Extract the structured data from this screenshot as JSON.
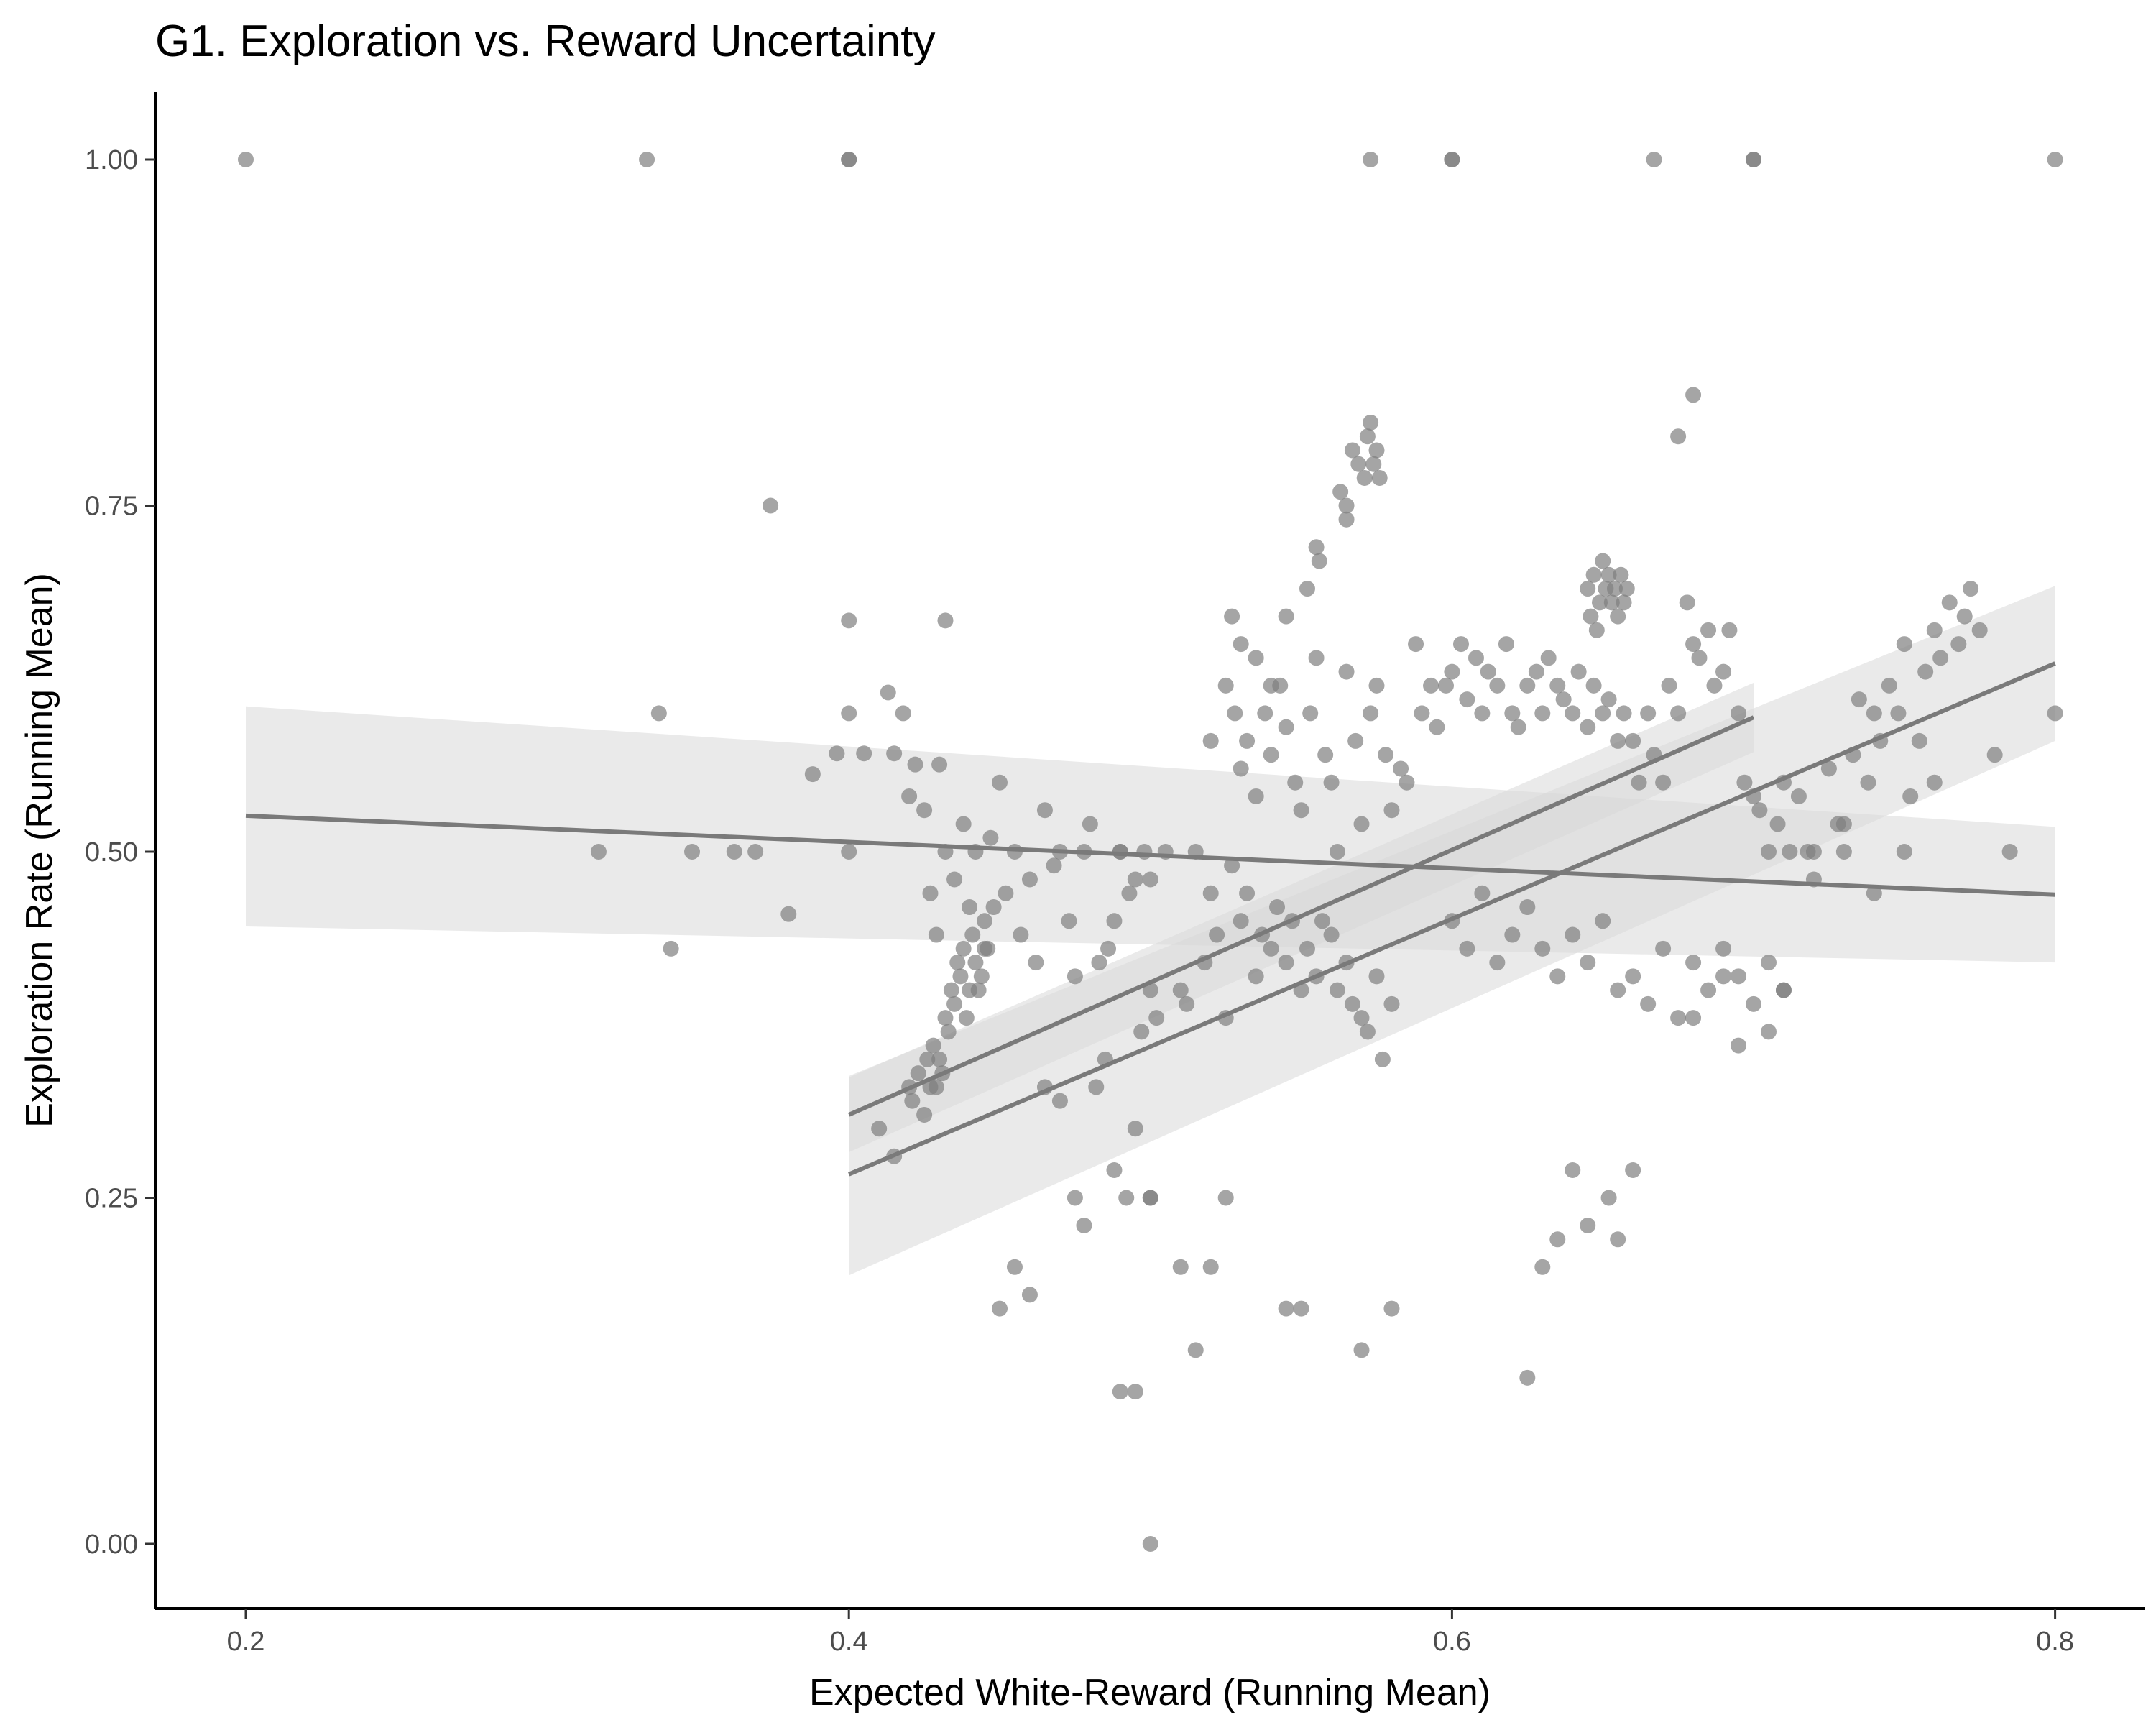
{
  "chart_data": {
    "type": "scatter",
    "title": "G1. Exploration vs. Reward Uncertainty",
    "xlabel": "Expected White-Reward (Running Mean)",
    "ylabel": "Exploration Rate (Running Mean)",
    "xlim": [
      0.17,
      0.81
    ],
    "ylim": [
      -0.05,
      1.05
    ],
    "x_ticks": [
      0.2,
      0.4,
      0.6,
      0.8
    ],
    "x_tick_labels": [
      "0.2",
      "0.4",
      "0.6",
      "0.8"
    ],
    "y_ticks": [
      0.0,
      0.25,
      0.5,
      0.75,
      1.0
    ],
    "y_tick_labels": [
      "0.00",
      "0.25",
      "0.50",
      "0.75",
      "1.00"
    ],
    "grid": false,
    "legend": "none",
    "colors": {
      "points": "#7f7f7f",
      "lines": "#7a7a7a",
      "ribbon": "#d9d9d9"
    },
    "series": [
      {
        "kind": "points",
        "x": [
          0.2,
          0.333,
          0.4,
          0.4,
          0.573,
          0.6,
          0.6,
          0.667,
          0.7,
          0.7,
          0.8,
          0.317,
          0.348,
          0.362,
          0.369,
          0.341,
          0.337,
          0.374,
          0.38,
          0.388,
          0.396,
          0.4,
          0.4,
          0.4,
          0.405,
          0.413,
          0.415,
          0.418,
          0.42,
          0.422,
          0.425,
          0.43,
          0.432,
          0.42,
          0.421,
          0.423,
          0.425,
          0.426,
          0.427,
          0.428,
          0.429,
          0.43,
          0.431,
          0.432,
          0.433,
          0.434,
          0.435,
          0.436,
          0.437,
          0.438,
          0.439,
          0.44,
          0.441,
          0.442,
          0.443,
          0.444,
          0.445,
          0.446,
          0.448,
          0.427,
          0.429,
          0.432,
          0.435,
          0.438,
          0.44,
          0.442,
          0.445,
          0.447,
          0.45,
          0.452,
          0.455,
          0.457,
          0.46,
          0.462,
          0.465,
          0.468,
          0.47,
          0.473,
          0.475,
          0.478,
          0.48,
          0.483,
          0.486,
          0.488,
          0.49,
          0.493,
          0.495,
          0.498,
          0.5,
          0.41,
          0.415,
          0.45,
          0.455,
          0.46,
          0.465,
          0.47,
          0.475,
          0.478,
          0.482,
          0.485,
          0.488,
          0.49,
          0.492,
          0.495,
          0.497,
          0.5,
          0.5,
          0.502,
          0.505,
          0.51,
          0.512,
          0.515,
          0.518,
          0.52,
          0.522,
          0.525,
          0.527,
          0.53,
          0.532,
          0.535,
          0.537,
          0.54,
          0.542,
          0.545,
          0.547,
          0.55,
          0.552,
          0.555,
          0.557,
          0.56,
          0.562,
          0.565,
          0.567,
          0.57,
          0.572,
          0.575,
          0.577,
          0.58,
          0.52,
          0.525,
          0.528,
          0.53,
          0.532,
          0.535,
          0.538,
          0.54,
          0.543,
          0.545,
          0.548,
          0.55,
          0.553,
          0.555,
          0.558,
          0.56,
          0.562,
          0.565,
          0.568,
          0.57,
          0.573,
          0.575,
          0.578,
          0.58,
          0.583,
          0.585,
          0.588,
          0.59,
          0.593,
          0.595,
          0.567,
          0.569,
          0.571,
          0.572,
          0.573,
          0.574,
          0.575,
          0.576,
          0.563,
          0.565,
          0.555,
          0.556,
          0.552,
          0.545,
          0.54,
          0.535,
          0.53,
          0.527,
          0.565,
          0.598,
          0.6,
          0.603,
          0.605,
          0.608,
          0.61,
          0.612,
          0.615,
          0.618,
          0.62,
          0.622,
          0.625,
          0.628,
          0.63,
          0.632,
          0.635,
          0.637,
          0.64,
          0.642,
          0.645,
          0.647,
          0.65,
          0.652,
          0.655,
          0.657,
          0.66,
          0.662,
          0.665,
          0.667,
          0.67,
          0.6,
          0.605,
          0.61,
          0.615,
          0.62,
          0.625,
          0.63,
          0.635,
          0.64,
          0.645,
          0.65,
          0.655,
          0.66,
          0.665,
          0.67,
          0.675,
          0.68,
          0.685,
          0.69,
          0.695,
          0.7,
          0.705,
          0.71,
          0.645,
          0.647,
          0.649,
          0.65,
          0.651,
          0.652,
          0.653,
          0.654,
          0.655,
          0.656,
          0.657,
          0.658,
          0.648,
          0.646,
          0.672,
          0.675,
          0.678,
          0.68,
          0.682,
          0.685,
          0.687,
          0.69,
          0.692,
          0.695,
          0.697,
          0.7,
          0.702,
          0.705,
          0.708,
          0.71,
          0.712,
          0.715,
          0.718,
          0.72,
          0.725,
          0.728,
          0.73,
          0.733,
          0.735,
          0.738,
          0.74,
          0.742,
          0.745,
          0.748,
          0.75,
          0.752,
          0.755,
          0.757,
          0.76,
          0.762,
          0.765,
          0.768,
          0.77,
          0.772,
          0.775,
          0.78,
          0.785,
          0.8,
          0.68,
          0.69,
          0.695,
          0.705,
          0.71,
          0.72,
          0.73,
          0.74,
          0.75,
          0.76,
          0.5,
          0.5,
          0.49,
          0.495,
          0.51,
          0.515,
          0.52,
          0.525,
          0.545,
          0.55,
          0.57,
          0.58,
          0.625,
          0.63,
          0.635,
          0.64,
          0.645,
          0.652,
          0.655,
          0.66,
          0.675,
          0.68
        ],
        "y": [
          1.0,
          1.0,
          1.0,
          1.0,
          1.0,
          1.0,
          1.0,
          1.0,
          1.0,
          1.0,
          1.0,
          0.5,
          0.5,
          0.5,
          0.5,
          0.43,
          0.6,
          0.75,
          0.455,
          0.556,
          0.571,
          0.6,
          0.5,
          0.667,
          0.571,
          0.615,
          0.571,
          0.6,
          0.54,
          0.563,
          0.53,
          0.563,
          0.667,
          0.33,
          0.32,
          0.34,
          0.31,
          0.35,
          0.33,
          0.36,
          0.33,
          0.35,
          0.34,
          0.38,
          0.37,
          0.4,
          0.39,
          0.42,
          0.41,
          0.43,
          0.38,
          0.4,
          0.44,
          0.42,
          0.4,
          0.41,
          0.45,
          0.43,
          0.46,
          0.47,
          0.44,
          0.5,
          0.48,
          0.52,
          0.46,
          0.5,
          0.43,
          0.51,
          0.55,
          0.47,
          0.5,
          0.44,
          0.48,
          0.42,
          0.53,
          0.49,
          0.5,
          0.45,
          0.41,
          0.5,
          0.52,
          0.42,
          0.43,
          0.45,
          0.5,
          0.47,
          0.48,
          0.5,
          0.48,
          0.3,
          0.28,
          0.17,
          0.2,
          0.18,
          0.33,
          0.32,
          0.25,
          0.23,
          0.33,
          0.35,
          0.27,
          0.11,
          0.25,
          0.3,
          0.37,
          0.4,
          0.25,
          0.38,
          0.5,
          0.4,
          0.39,
          0.5,
          0.42,
          0.47,
          0.44,
          0.38,
          0.49,
          0.45,
          0.47,
          0.41,
          0.44,
          0.43,
          0.46,
          0.42,
          0.45,
          0.4,
          0.43,
          0.41,
          0.45,
          0.44,
          0.4,
          0.42,
          0.39,
          0.38,
          0.37,
          0.41,
          0.35,
          0.39,
          0.58,
          0.62,
          0.6,
          0.56,
          0.58,
          0.54,
          0.6,
          0.57,
          0.62,
          0.59,
          0.55,
          0.53,
          0.6,
          0.64,
          0.57,
          0.55,
          0.5,
          0.63,
          0.58,
          0.52,
          0.6,
          0.62,
          0.57,
          0.53,
          0.56,
          0.55,
          0.65,
          0.6,
          0.62,
          0.59,
          0.79,
          0.78,
          0.77,
          0.8,
          0.81,
          0.78,
          0.79,
          0.77,
          0.76,
          0.74,
          0.72,
          0.71,
          0.69,
          0.67,
          0.62,
          0.64,
          0.65,
          0.67,
          0.75,
          0.62,
          0.63,
          0.65,
          0.61,
          0.64,
          0.6,
          0.63,
          0.62,
          0.65,
          0.6,
          0.59,
          0.62,
          0.63,
          0.6,
          0.64,
          0.62,
          0.61,
          0.6,
          0.63,
          0.59,
          0.62,
          0.6,
          0.61,
          0.58,
          0.6,
          0.58,
          0.55,
          0.6,
          0.57,
          0.55,
          0.45,
          0.43,
          0.47,
          0.42,
          0.44,
          0.46,
          0.43,
          0.41,
          0.44,
          0.42,
          0.45,
          0.4,
          0.41,
          0.39,
          0.43,
          0.38,
          0.42,
          0.4,
          0.43,
          0.41,
          0.39,
          0.42,
          0.4,
          0.69,
          0.7,
          0.68,
          0.71,
          0.69,
          0.7,
          0.68,
          0.69,
          0.67,
          0.7,
          0.68,
          0.69,
          0.66,
          0.67,
          0.62,
          0.6,
          0.68,
          0.65,
          0.64,
          0.66,
          0.62,
          0.63,
          0.66,
          0.6,
          0.55,
          0.54,
          0.53,
          0.5,
          0.52,
          0.55,
          0.5,
          0.54,
          0.5,
          0.48,
          0.56,
          0.52,
          0.5,
          0.57,
          0.61,
          0.55,
          0.6,
          0.58,
          0.62,
          0.6,
          0.65,
          0.54,
          0.58,
          0.63,
          0.66,
          0.64,
          0.68,
          0.65,
          0.67,
          0.69,
          0.66,
          0.57,
          0.5,
          0.6,
          0.38,
          0.41,
          0.36,
          0.37,
          0.4,
          0.5,
          0.52,
          0.47,
          0.5,
          0.55,
          0.0,
          0.25,
          0.5,
          0.11,
          0.2,
          0.14,
          0.2,
          0.25,
          0.17,
          0.17,
          0.14,
          0.17,
          0.12,
          0.2,
          0.22,
          0.27,
          0.23,
          0.25,
          0.22,
          0.27,
          0.8,
          0.83
        ]
      },
      {
        "kind": "fit",
        "x": [
          0.2,
          0.8
        ],
        "y": [
          0.526,
          0.469
        ],
        "ci_low": [
          0.446,
          0.42
        ],
        "ci_high": [
          0.605,
          0.518
        ]
      },
      {
        "kind": "fit",
        "x": [
          0.4,
          0.7
        ],
        "y": [
          0.31,
          0.597
        ],
        "ci_low": [
          0.283,
          0.572
        ],
        "ci_high": [
          0.337,
          0.622
        ]
      },
      {
        "kind": "fit",
        "x": [
          0.4,
          0.8
        ],
        "y": [
          0.267,
          0.636
        ],
        "ci_low": [
          0.194,
          0.58
        ],
        "ci_high": [
          0.338,
          0.692
        ]
      }
    ]
  }
}
